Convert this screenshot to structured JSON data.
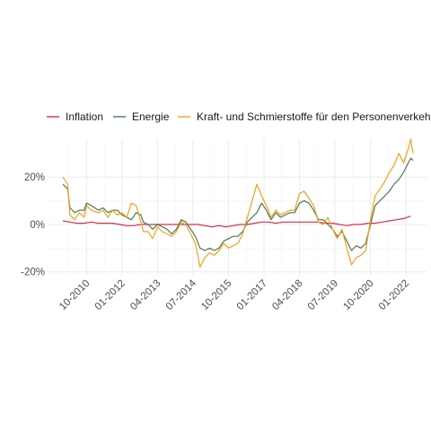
{
  "chart_data": {
    "type": "line",
    "legend_position": "top",
    "grid": true,
    "title": "",
    "xlabel": "",
    "ylabel": "",
    "x_start": "2009-12",
    "x_end": "2022-04",
    "x_ticks": [
      "10-2010",
      "01-2012",
      "04-2013",
      "07-2014",
      "10-2015",
      "01-2017",
      "04-2018",
      "07-2019",
      "10-2020",
      "01-2022"
    ],
    "x_tick_positions": [
      "2010-10",
      "2012-01",
      "2013-04",
      "2014-07",
      "2015-10",
      "2017-01",
      "2018-04",
      "2019-07",
      "2020-10",
      "2022-01"
    ],
    "y_ticks": [
      "-20%",
      "0%",
      "20%"
    ],
    "y_tick_values": [
      -20,
      0,
      20
    ],
    "ylim": [
      -22,
      36
    ],
    "series": [
      {
        "name": "Inflation",
        "color": "#d62d4f",
        "points": [
          [
            "2009-12",
            1.5
          ],
          [
            "2010-03",
            1.0
          ],
          [
            "2010-06",
            0.5
          ],
          [
            "2010-09",
            0.5
          ],
          [
            "2010-12",
            1.0
          ],
          [
            "2011-03",
            0.5
          ],
          [
            "2011-06",
            0.5
          ],
          [
            "2011-09",
            0.5
          ],
          [
            "2011-12",
            0.0
          ],
          [
            "2012-03",
            -0.5
          ],
          [
            "2012-06",
            -0.5
          ],
          [
            "2012-09",
            0.0
          ],
          [
            "2012-12",
            0.0
          ],
          [
            "2013-03",
            0.0
          ],
          [
            "2013-06",
            0.0
          ],
          [
            "2013-09",
            0.0
          ],
          [
            "2013-12",
            0.0
          ],
          [
            "2014-03",
            0.0
          ],
          [
            "2014-06",
            0.0
          ],
          [
            "2014-09",
            0.0
          ],
          [
            "2014-12",
            -0.5
          ],
          [
            "2015-03",
            -1.0
          ],
          [
            "2015-06",
            -0.5
          ],
          [
            "2015-09",
            -1.0
          ],
          [
            "2015-12",
            -0.5
          ],
          [
            "2016-03",
            0.0
          ],
          [
            "2016-06",
            0.0
          ],
          [
            "2016-09",
            0.5
          ],
          [
            "2016-12",
            1.0
          ],
          [
            "2017-03",
            1.0
          ],
          [
            "2017-06",
            0.5
          ],
          [
            "2017-09",
            1.0
          ],
          [
            "2017-12",
            1.0
          ],
          [
            "2018-03",
            1.0
          ],
          [
            "2018-06",
            1.0
          ],
          [
            "2018-09",
            1.0
          ],
          [
            "2018-12",
            1.0
          ],
          [
            "2019-03",
            0.5
          ],
          [
            "2019-06",
            0.5
          ],
          [
            "2019-09",
            0.0
          ],
          [
            "2019-12",
            -0.5
          ],
          [
            "2020-03",
            0.0
          ],
          [
            "2020-06",
            0.0
          ],
          [
            "2020-09",
            0.5
          ],
          [
            "2020-12",
            0.5
          ],
          [
            "2021-03",
            1.0
          ],
          [
            "2021-06",
            1.5
          ],
          [
            "2021-09",
            2.0
          ],
          [
            "2021-12",
            2.5
          ],
          [
            "2022-03",
            3.5
          ]
        ]
      },
      {
        "name": "Energie",
        "color": "#4d7a52",
        "points": [
          [
            "2009-12",
            17
          ],
          [
            "2010-02",
            15
          ],
          [
            "2010-03",
            7
          ],
          [
            "2010-05",
            5
          ],
          [
            "2010-07",
            6
          ],
          [
            "2010-09",
            6
          ],
          [
            "2010-10",
            9
          ],
          [
            "2010-12",
            8
          ],
          [
            "2011-03",
            6
          ],
          [
            "2011-05",
            7
          ],
          [
            "2011-07",
            5
          ],
          [
            "2011-09",
            6
          ],
          [
            "2011-11",
            6
          ],
          [
            "2012-01",
            4
          ],
          [
            "2012-03",
            3
          ],
          [
            "2012-05",
            2
          ],
          [
            "2012-07",
            5
          ],
          [
            "2012-09",
            4
          ],
          [
            "2012-10",
            1
          ],
          [
            "2012-12",
            0
          ],
          [
            "2013-02",
            -2
          ],
          [
            "2013-04",
            0
          ],
          [
            "2013-06",
            -1
          ],
          [
            "2013-08",
            -2
          ],
          [
            "2013-10",
            -4
          ],
          [
            "2013-12",
            -2
          ],
          [
            "2014-02",
            2
          ],
          [
            "2014-04",
            1
          ],
          [
            "2014-06",
            -2
          ],
          [
            "2014-08",
            -5
          ],
          [
            "2014-10",
            -10
          ],
          [
            "2014-12",
            -11
          ],
          [
            "2015-02",
            -10
          ],
          [
            "2015-04",
            -11
          ],
          [
            "2015-06",
            -10
          ],
          [
            "2015-08",
            -7
          ],
          [
            "2015-10",
            -6
          ],
          [
            "2015-12",
            -5
          ],
          [
            "2016-02",
            -5
          ],
          [
            "2016-04",
            -3
          ],
          [
            "2016-06",
            1
          ],
          [
            "2016-08",
            3
          ],
          [
            "2016-10",
            5
          ],
          [
            "2016-12",
            9
          ],
          [
            "2017-02",
            6
          ],
          [
            "2017-04",
            2
          ],
          [
            "2017-06",
            5
          ],
          [
            "2017-08",
            3
          ],
          [
            "2017-10",
            4
          ],
          [
            "2017-12",
            5
          ],
          [
            "2018-02",
            5
          ],
          [
            "2018-04",
            9
          ],
          [
            "2018-06",
            10
          ],
          [
            "2018-08",
            9
          ],
          [
            "2018-10",
            6
          ],
          [
            "2018-12",
            2
          ],
          [
            "2019-02",
            2
          ],
          [
            "2019-04",
            0
          ],
          [
            "2019-06",
            -2
          ],
          [
            "2019-08",
            -5
          ],
          [
            "2019-10",
            -3
          ],
          [
            "2019-12",
            -7
          ],
          [
            "2020-02",
            -11
          ],
          [
            "2020-04",
            -9
          ],
          [
            "2020-06",
            -10
          ],
          [
            "2020-08",
            -8
          ],
          [
            "2020-10",
            0
          ],
          [
            "2020-12",
            8
          ],
          [
            "2021-02",
            10
          ],
          [
            "2021-04",
            12
          ],
          [
            "2021-06",
            14
          ],
          [
            "2021-08",
            17
          ],
          [
            "2021-10",
            19
          ],
          [
            "2021-12",
            22
          ],
          [
            "2022-02",
            26
          ],
          [
            "2022-03",
            28
          ],
          [
            "2022-04",
            27
          ]
        ]
      },
      {
        "name": "Kraft- und Schmierstoffe für den Personenverkehr",
        "color": "#f0a020",
        "points": [
          [
            "2009-12",
            20
          ],
          [
            "2010-02",
            17
          ],
          [
            "2010-03",
            4
          ],
          [
            "2010-05",
            2
          ],
          [
            "2010-07",
            5
          ],
          [
            "2010-09",
            3
          ],
          [
            "2010-10",
            8
          ],
          [
            "2010-12",
            6
          ],
          [
            "2011-03",
            5
          ],
          [
            "2011-05",
            6
          ],
          [
            "2011-07",
            3
          ],
          [
            "2011-09",
            6
          ],
          [
            "2011-11",
            4
          ],
          [
            "2012-01",
            5
          ],
          [
            "2012-03",
            3
          ],
          [
            "2012-05",
            9
          ],
          [
            "2012-07",
            8
          ],
          [
            "2012-09",
            1
          ],
          [
            "2012-10",
            -3
          ],
          [
            "2012-12",
            -3
          ],
          [
            "2013-02",
            -6
          ],
          [
            "2013-04",
            -1
          ],
          [
            "2013-06",
            -3
          ],
          [
            "2013-08",
            -4
          ],
          [
            "2013-10",
            -5
          ],
          [
            "2013-12",
            -3
          ],
          [
            "2014-02",
            1
          ],
          [
            "2014-04",
            0
          ],
          [
            "2014-06",
            -4
          ],
          [
            "2014-08",
            -8
          ],
          [
            "2014-10",
            -18
          ],
          [
            "2014-12",
            -14
          ],
          [
            "2015-02",
            -12
          ],
          [
            "2015-04",
            -13
          ],
          [
            "2015-06",
            -11
          ],
          [
            "2015-08",
            -8
          ],
          [
            "2015-10",
            -10
          ],
          [
            "2015-12",
            -9
          ],
          [
            "2016-02",
            -8
          ],
          [
            "2016-04",
            -4
          ],
          [
            "2016-06",
            3
          ],
          [
            "2016-08",
            10
          ],
          [
            "2016-10",
            17
          ],
          [
            "2016-12",
            12
          ],
          [
            "2017-02",
            8
          ],
          [
            "2017-04",
            3
          ],
          [
            "2017-06",
            6
          ],
          [
            "2017-08",
            4
          ],
          [
            "2017-10",
            5
          ],
          [
            "2017-12",
            6
          ],
          [
            "2018-02",
            6
          ],
          [
            "2018-04",
            13
          ],
          [
            "2018-06",
            14
          ],
          [
            "2018-08",
            11
          ],
          [
            "2018-10",
            8
          ],
          [
            "2018-12",
            1
          ],
          [
            "2019-02",
            0
          ],
          [
            "2019-04",
            3
          ],
          [
            "2019-06",
            -2
          ],
          [
            "2019-08",
            -6
          ],
          [
            "2019-10",
            -2
          ],
          [
            "2019-12",
            -10
          ],
          [
            "2020-02",
            -17
          ],
          [
            "2020-04",
            -14
          ],
          [
            "2020-06",
            -13
          ],
          [
            "2020-08",
            -11
          ],
          [
            "2020-10",
            2
          ],
          [
            "2020-12",
            12
          ],
          [
            "2021-02",
            15
          ],
          [
            "2021-04",
            18
          ],
          [
            "2021-06",
            22
          ],
          [
            "2021-08",
            25
          ],
          [
            "2021-10",
            30
          ],
          [
            "2021-12",
            26
          ],
          [
            "2022-02",
            32
          ],
          [
            "2022-03",
            36
          ],
          [
            "2022-04",
            30
          ]
        ]
      }
    ]
  }
}
